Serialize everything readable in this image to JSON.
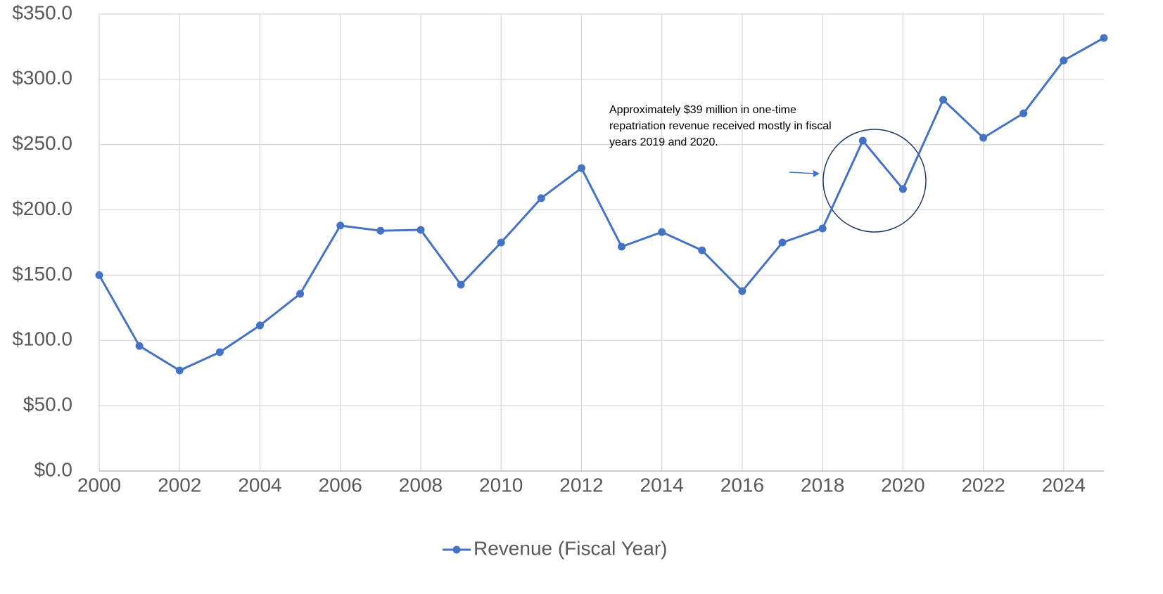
{
  "chart_data": {
    "type": "line",
    "x": [
      2000,
      2001,
      2002,
      2003,
      2004,
      2005,
      2006,
      2007,
      2008,
      2009,
      2010,
      2011,
      2012,
      2013,
      2014,
      2015,
      2016,
      2017,
      2018,
      2019,
      2020,
      2021,
      2022,
      2023,
      2024,
      2025
    ],
    "series": [
      {
        "name": "Revenue (Fiscal Year)",
        "color": "#4472c4",
        "values": [
          150,
          95.8,
          77,
          91,
          111.5,
          135.7,
          188,
          184,
          184.7,
          142.7,
          175,
          209,
          232,
          171.8,
          183,
          169,
          137.8,
          175,
          185.8,
          253,
          216,
          284.3,
          255.2,
          274,
          314.5,
          331.7
        ]
      }
    ],
    "xlim": [
      2000,
      2025
    ],
    "xticks": [
      2000,
      2002,
      2004,
      2006,
      2008,
      2010,
      2012,
      2014,
      2016,
      2018,
      2020,
      2022,
      2024
    ],
    "ylim": [
      0,
      350
    ],
    "yticks": [
      {
        "value": 0,
        "label": "$0.0"
      },
      {
        "value": 50,
        "label": "$50.0"
      },
      {
        "value": 100,
        "label": "$100.0"
      },
      {
        "value": 150,
        "label": "$150.0"
      },
      {
        "value": 200,
        "label": "$200.0"
      },
      {
        "value": 250,
        "label": "$250.0"
      },
      {
        "value": 300,
        "label": "$300.0"
      },
      {
        "value": 350,
        "label": "$350.0"
      }
    ],
    "grid": true,
    "legend": "bottom",
    "annotation": "Approximately $39 million in one-time repatriation revenue received mostly in fiscal years 2019 and 2020."
  }
}
